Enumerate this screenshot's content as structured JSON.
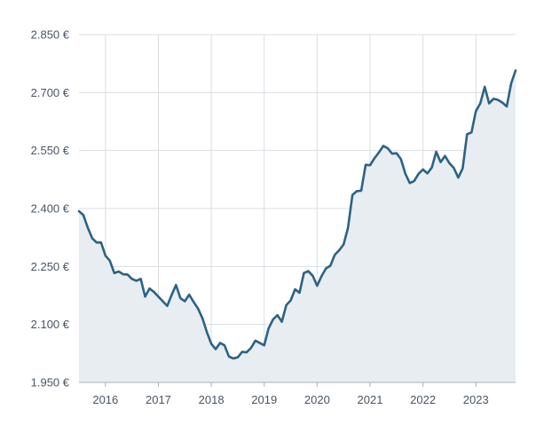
{
  "chart_data": {
    "type": "area",
    "title": "",
    "xlabel": "",
    "ylabel": "",
    "y_ticks": [
      "1.950 €",
      "2.100 €",
      "2.250 €",
      "2.400 €",
      "2.550 €",
      "2.700 €",
      "2.850 €"
    ],
    "y_tick_values": [
      1950,
      2100,
      2250,
      2400,
      2550,
      2700,
      2850
    ],
    "x_ticks": [
      "2016",
      "2017",
      "2018",
      "2019",
      "2020",
      "2021",
      "2022",
      "2023"
    ],
    "x_tick_values": [
      2016,
      2017,
      2018,
      2019,
      2020,
      2021,
      2022,
      2023
    ],
    "xlim": [
      2015.5,
      2023.75
    ],
    "ylim": [
      1950,
      2850
    ],
    "grid": true,
    "colors": {
      "line": "#2b6384",
      "fill": "#e8edf2",
      "grid": "#d9dde3",
      "axis": "#a9b0b9"
    },
    "series": [
      {
        "x": [
          2015.5,
          2015.583,
          2015.667,
          2015.75,
          2015.833,
          2015.917,
          2016.0,
          2016.083,
          2016.167,
          2016.25,
          2016.333,
          2016.417,
          2016.5,
          2016.583,
          2016.667,
          2016.75,
          2016.833,
          2016.917,
          2017.0,
          2017.083,
          2017.167,
          2017.25,
          2017.333,
          2017.417,
          2017.5,
          2017.583,
          2017.667,
          2017.75,
          2017.833,
          2017.917,
          2018.0,
          2018.083,
          2018.167,
          2018.25,
          2018.333,
          2018.417,
          2018.5,
          2018.583,
          2018.667,
          2018.75,
          2018.833,
          2018.917,
          2019.0,
          2019.083,
          2019.167,
          2019.25,
          2019.333,
          2019.417,
          2019.5,
          2019.583,
          2019.667,
          2019.75,
          2019.833,
          2019.917,
          2020.0,
          2020.083,
          2020.167,
          2020.25,
          2020.333,
          2020.417,
          2020.5,
          2020.583,
          2020.667,
          2020.75,
          2020.833,
          2020.917,
          2021.0,
          2021.083,
          2021.167,
          2021.25,
          2021.333,
          2021.417,
          2021.5,
          2021.583,
          2021.667,
          2021.75,
          2021.833,
          2021.917,
          2022.0,
          2022.083,
          2022.167,
          2022.25,
          2022.333,
          2022.417,
          2022.5,
          2022.583,
          2022.667,
          2022.75,
          2022.833,
          2022.917,
          2023.0,
          2023.083,
          2023.167,
          2023.25,
          2023.333,
          2023.417,
          2023.5,
          2023.583,
          2023.667,
          2023.75
        ],
        "values": [
          2393,
          2383,
          2350,
          2323,
          2312,
          2312,
          2278,
          2265,
          2233,
          2237,
          2230,
          2229,
          2218,
          2213,
          2218,
          2172,
          2193,
          2184,
          2172,
          2160,
          2148,
          2176,
          2202,
          2168,
          2160,
          2177,
          2158,
          2141,
          2116,
          2080,
          2050,
          2036,
          2052,
          2046,
          2017,
          2012,
          2015,
          2029,
          2028,
          2039,
          2058,
          2052,
          2046,
          2090,
          2113,
          2124,
          2107,
          2150,
          2162,
          2191,
          2182,
          2233,
          2238,
          2226,
          2200,
          2225,
          2245,
          2252,
          2280,
          2292,
          2307,
          2350,
          2435,
          2445,
          2446,
          2513,
          2512,
          2530,
          2545,
          2562,
          2556,
          2542,
          2543,
          2528,
          2490,
          2466,
          2471,
          2490,
          2501,
          2491,
          2506,
          2547,
          2520,
          2536,
          2517,
          2505,
          2480,
          2504,
          2592,
          2597,
          2652,
          2672,
          2715,
          2672,
          2684,
          2681,
          2674,
          2664,
          2724,
          2757
        ]
      }
    ]
  }
}
